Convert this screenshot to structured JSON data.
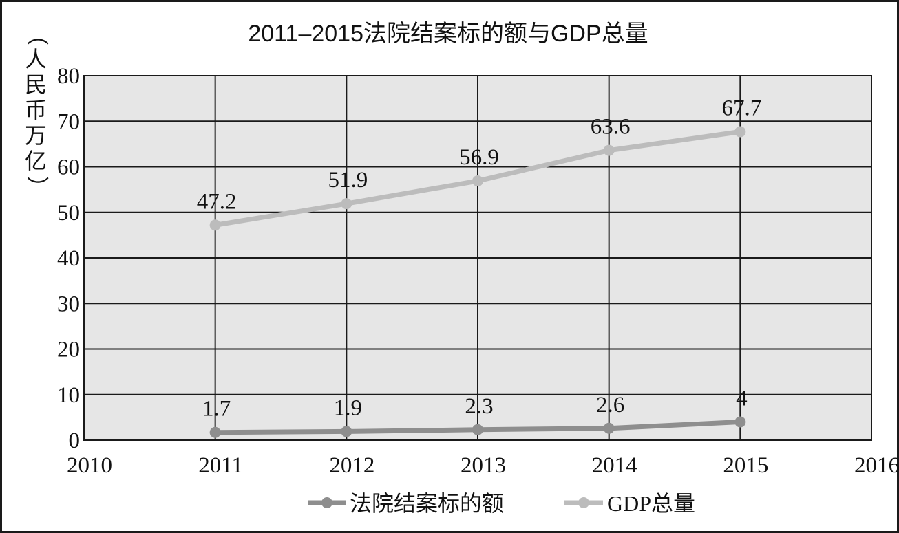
{
  "chart_data": {
    "type": "line",
    "title": "2011–2015法院结案标的额与GDP总量",
    "ylabel": "（人民币万亿）",
    "ylabel_chars": [
      "（",
      "人",
      "民",
      "币",
      "万",
      "亿",
      "）"
    ],
    "xlabel": "",
    "x_ticks": [
      "2010",
      "2011",
      "2012",
      "2013",
      "2014",
      "2015",
      "2016"
    ],
    "y_ticks": [
      "0",
      "10",
      "20",
      "30",
      "40",
      "50",
      "60",
      "70",
      "80"
    ],
    "xlim": [
      2010,
      2016
    ],
    "ylim": [
      0,
      80
    ],
    "grid": true,
    "legend_position": "bottom",
    "series": [
      {
        "name": "法院结案标的额",
        "color": "#8e8e8e",
        "x": [
          2011,
          2012,
          2013,
          2014,
          2015
        ],
        "values": [
          1.7,
          1.9,
          2.3,
          2.6,
          4
        ],
        "labels": [
          "1.7",
          "1.9",
          "2.3",
          "2.6",
          "4"
        ]
      },
      {
        "name": "GDP总量",
        "color": "#bcbcbc",
        "x": [
          2011,
          2012,
          2013,
          2014,
          2015
        ],
        "values": [
          47.2,
          51.9,
          56.9,
          63.6,
          67.7
        ],
        "labels": [
          "47.2",
          "51.9",
          "56.9",
          "63.6",
          "67.7"
        ]
      }
    ],
    "plot_background": "#e6e6e6",
    "grid_color": "#1a1a1a"
  }
}
